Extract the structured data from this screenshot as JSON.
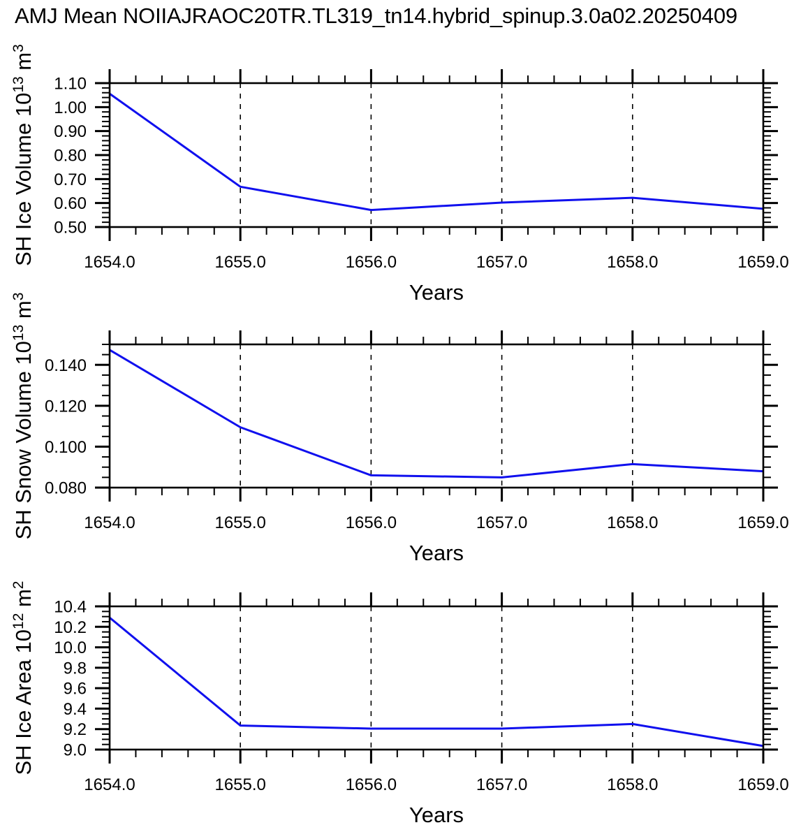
{
  "title": "AMJ Mean NOIIAJRAOC20TR.TL319_tn14.hybrid_spinup.3.0a02.20250409",
  "chart_data": [
    {
      "type": "line",
      "name": "sh-ice-volume",
      "ylabel_parts": [
        {
          "text": "SH Ice Volume 10"
        },
        {
          "text": "13",
          "sup": true
        },
        {
          "text": " m"
        },
        {
          "text": "3",
          "sup": true
        }
      ],
      "xlabel": "Years",
      "x": [
        1654,
        1655,
        1656,
        1657,
        1658,
        1659
      ],
      "y": [
        1.056,
        0.668,
        0.571,
        0.602,
        0.622,
        0.576
      ],
      "xlim": [
        1654,
        1659
      ],
      "ylim": [
        0.5,
        1.1
      ],
      "x_major_ticks": [
        1654,
        1655,
        1656,
        1657,
        1658,
        1659
      ],
      "x_tick_labels": [
        "1654.0",
        "1655.0",
        "1656.0",
        "1657.0",
        "1658.0",
        "1659.0"
      ],
      "x_minor_step": 0.2,
      "y_major_ticks": [
        0.5,
        0.6,
        0.7,
        0.8,
        0.9,
        1.0,
        1.1
      ],
      "y_tick_labels": [
        "0.50",
        "0.60",
        "0.70",
        "0.80",
        "0.90",
        "1.00",
        "1.10"
      ],
      "y_minor_step": 0.02,
      "gridlines_x": [
        1655,
        1656,
        1657,
        1658
      ],
      "grid": "dashed-vertical",
      "line_color": "#1010ee"
    },
    {
      "type": "line",
      "name": "sh-snow-volume",
      "ylabel_parts": [
        {
          "text": "SH Snow Volume 10"
        },
        {
          "text": "13",
          "sup": true
        },
        {
          "text": " m"
        },
        {
          "text": "3",
          "sup": true
        }
      ],
      "xlabel": "Years",
      "x": [
        1654,
        1655,
        1656,
        1657,
        1658,
        1659
      ],
      "y": [
        0.1473,
        0.1095,
        0.086,
        0.085,
        0.0915,
        0.088
      ],
      "xlim": [
        1654,
        1659
      ],
      "ylim": [
        0.08,
        0.15
      ],
      "x_major_ticks": [
        1654,
        1655,
        1656,
        1657,
        1658,
        1659
      ],
      "x_tick_labels": [
        "1654.0",
        "1655.0",
        "1656.0",
        "1657.0",
        "1658.0",
        "1659.0"
      ],
      "x_minor_step": 0.2,
      "y_major_ticks": [
        0.08,
        0.1,
        0.12,
        0.14
      ],
      "y_tick_labels": [
        "0.080",
        "0.100",
        "0.120",
        "0.140"
      ],
      "y_minor_step": 0.005,
      "gridlines_x": [
        1655,
        1656,
        1657,
        1658
      ],
      "grid": "dashed-vertical",
      "line_color": "#1010ee"
    },
    {
      "type": "line",
      "name": "sh-ice-area",
      "ylabel_parts": [
        {
          "text": "SH Ice Area 10"
        },
        {
          "text": "12",
          "sup": true
        },
        {
          "text": " m"
        },
        {
          "text": "2",
          "sup": true
        }
      ],
      "xlabel": "Years",
      "x": [
        1654,
        1655,
        1656,
        1657,
        1658,
        1659
      ],
      "y": [
        10.29,
        9.235,
        9.205,
        9.205,
        9.25,
        9.035
      ],
      "xlim": [
        1654,
        1659
      ],
      "ylim": [
        9.0,
        10.4
      ],
      "x_major_ticks": [
        1654,
        1655,
        1656,
        1657,
        1658,
        1659
      ],
      "x_tick_labels": [
        "1654.0",
        "1655.0",
        "1656.0",
        "1657.0",
        "1658.0",
        "1659.0"
      ],
      "x_minor_step": 0.2,
      "y_major_ticks": [
        9.0,
        9.2,
        9.4,
        9.6,
        9.8,
        10.0,
        10.2,
        10.4
      ],
      "y_tick_labels": [
        "9.0",
        "9.2",
        "9.4",
        "9.6",
        "9.8",
        "10.0",
        "10.2",
        "10.4"
      ],
      "y_minor_step": 0.05,
      "gridlines_x": [
        1655,
        1656,
        1657,
        1658
      ],
      "grid": "dashed-vertical",
      "line_color": "#1010ee"
    }
  ]
}
